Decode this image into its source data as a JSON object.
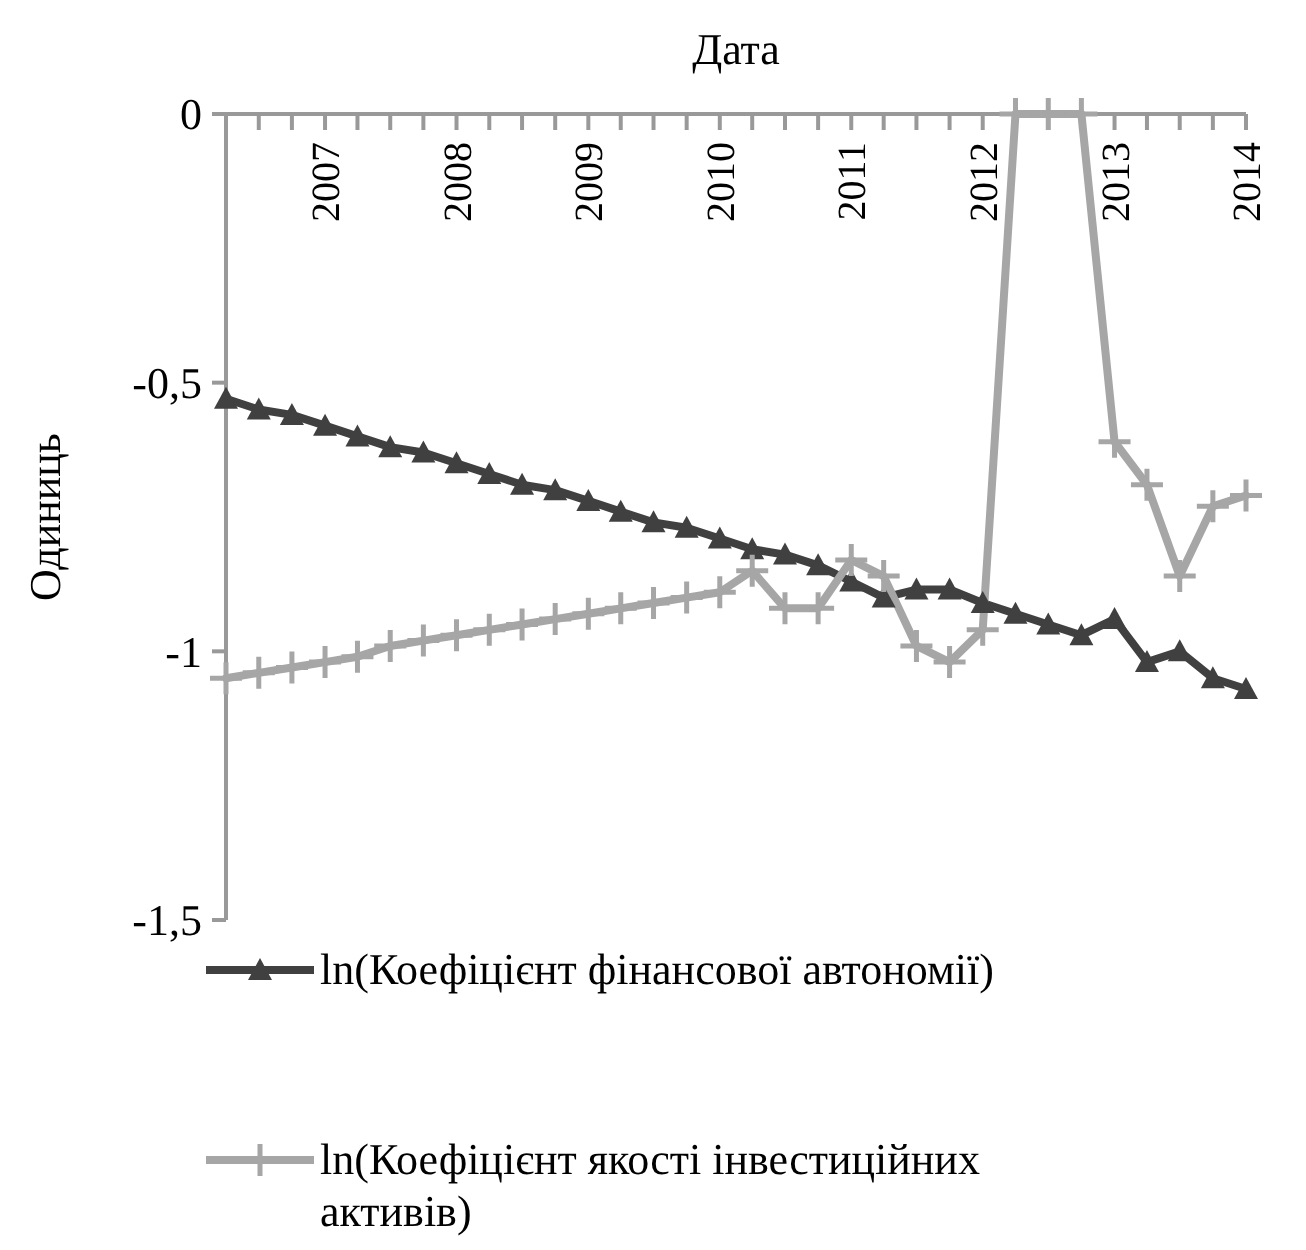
{
  "chart_data": {
    "type": "line",
    "title": "Дата",
    "ylabel": "Одиниць",
    "x": [
      "2006-04",
      "2006-07",
      "2006-10",
      "2007-01",
      "2007-04",
      "2007-07",
      "2007-10",
      "2008-01",
      "2008-04",
      "2008-07",
      "2008-10",
      "2009-01",
      "2009-04",
      "2009-07",
      "2009-10",
      "2010-01",
      "2010-04",
      "2010-07",
      "2010-10",
      "2011-01",
      "2011-04",
      "2011-07",
      "2011-10",
      "2012-01",
      "2012-04",
      "2012-07",
      "2012-10",
      "2013-01",
      "2013-04",
      "2013-07",
      "2013-10",
      "2014-01"
    ],
    "series": [
      {
        "name": "ln(Коефіцієнт фінансової автономії)",
        "color": "#404040",
        "marker": "triangle",
        "values": [
          -0.53,
          -0.55,
          -0.56,
          -0.58,
          -0.6,
          -0.62,
          -0.63,
          -0.65,
          -0.67,
          -0.69,
          -0.7,
          -0.72,
          -0.74,
          -0.76,
          -0.77,
          -0.79,
          -0.81,
          -0.82,
          -0.84,
          -0.87,
          -0.9,
          -0.885,
          -0.885,
          -0.91,
          -0.93,
          -0.95,
          -0.97,
          -0.94,
          -1.02,
          -1.0,
          -1.05,
          -1.07
        ]
      },
      {
        "name": "ln(Коефіцієнт якості інвестиційних активів)",
        "color": "#a6a6a6",
        "marker": "cross",
        "values": [
          -1.05,
          -1.04,
          -1.03,
          -1.02,
          -1.01,
          -0.99,
          -0.98,
          -0.97,
          -0.96,
          -0.95,
          -0.94,
          -0.93,
          -0.92,
          -0.91,
          -0.9,
          -0.89,
          -0.85,
          -0.92,
          -0.92,
          -0.83,
          -0.86,
          -0.99,
          -1.02,
          -0.96,
          0,
          0,
          0,
          -0.61,
          -0.69,
          -0.86,
          -0.73,
          -0.71
        ]
      }
    ],
    "xlim": [
      "2006-04",
      "2014-01"
    ],
    "xticks": [
      {
        "value": "2006-07",
        "label": null
      },
      {
        "value": "2006-10",
        "label": null
      },
      {
        "value": "2007-01",
        "label": "2007"
      },
      {
        "value": "2007-04",
        "label": null
      },
      {
        "value": "2007-07",
        "label": null
      },
      {
        "value": "2007-10",
        "label": null
      },
      {
        "value": "2008-01",
        "label": "2008"
      },
      {
        "value": "2008-04",
        "label": null
      },
      {
        "value": "2008-07",
        "label": null
      },
      {
        "value": "2008-10",
        "label": null
      },
      {
        "value": "2009-01",
        "label": "2009"
      },
      {
        "value": "2009-04",
        "label": null
      },
      {
        "value": "2009-07",
        "label": null
      },
      {
        "value": "2009-10",
        "label": null
      },
      {
        "value": "2010-01",
        "label": "2010"
      },
      {
        "value": "2010-04",
        "label": null
      },
      {
        "value": "2010-07",
        "label": null
      },
      {
        "value": "2010-10",
        "label": null
      },
      {
        "value": "2011-01",
        "label": "2011"
      },
      {
        "value": "2011-04",
        "label": null
      },
      {
        "value": "2011-07",
        "label": null
      },
      {
        "value": "2011-10",
        "label": null
      },
      {
        "value": "2012-01",
        "label": "2012"
      },
      {
        "value": "2012-04",
        "label": null
      },
      {
        "value": "2012-07",
        "label": null
      },
      {
        "value": "2012-10",
        "label": null
      },
      {
        "value": "2013-01",
        "label": "2013"
      },
      {
        "value": "2013-04",
        "label": null
      },
      {
        "value": "2013-07",
        "label": null
      },
      {
        "value": "2013-10",
        "label": null
      },
      {
        "value": "2014-01",
        "label": "2014"
      }
    ],
    "ylim": [
      -1.5,
      0
    ],
    "yticks": [
      0,
      {
        "value": -0.5,
        "label": "-0,5"
      },
      -1,
      {
        "value": -1.5,
        "label": "-1,5"
      }
    ],
    "grid": false,
    "legend": "bottom",
    "line_style": "solid"
  }
}
